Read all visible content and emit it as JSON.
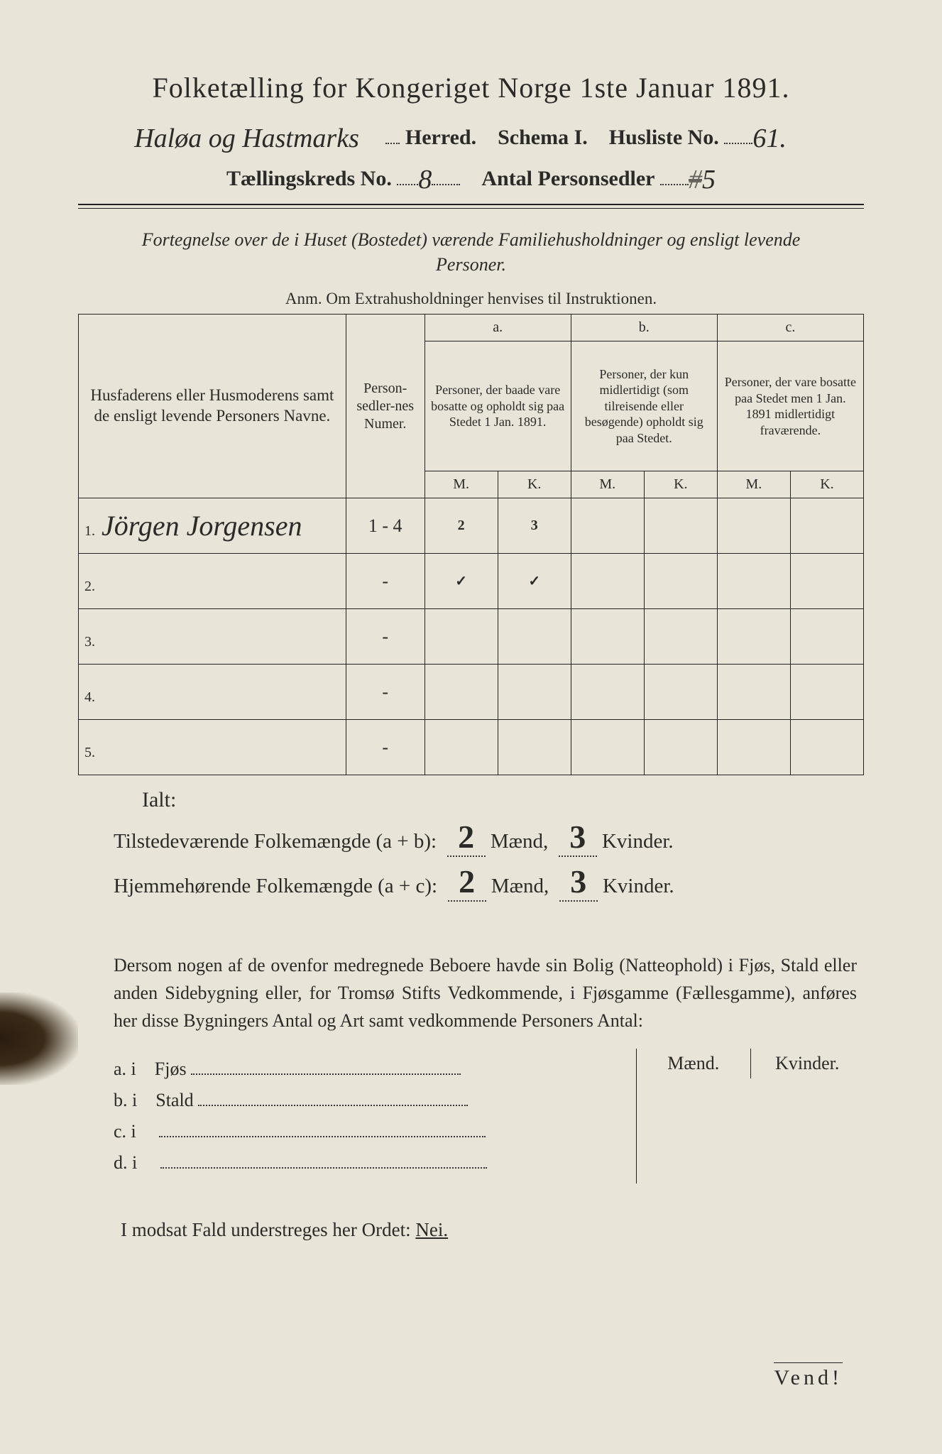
{
  "title": "Folketælling for Kongeriget Norge 1ste Januar 1891.",
  "header": {
    "herred_handwritten": "Haløa og Hastmarks",
    "herred_label": "Herred.",
    "schema_label": "Schema I.",
    "husliste_label": "Husliste No.",
    "husliste_no": "61.",
    "kreds_label": "Tællingskreds No.",
    "kreds_no": "8",
    "antal_label": "Antal Personsedler",
    "antal_val": "5",
    "antal_struck": "#"
  },
  "subtitle": "Fortegnelse over de i Huset (Bostedet) værende Familiehusholdninger og ensligt levende Personer.",
  "anm": "Anm.  Om Extrahusholdninger henvises til Instruktionen.",
  "table": {
    "col_name": "Husfaderens eller Husmoderens samt de ensligt levende Personers Navne.",
    "col_num": "Person-sedler-nes Numer.",
    "group_a": "a.",
    "group_a_text": "Personer, der baade vare bosatte og opholdt sig paa Stedet 1 Jan. 1891.",
    "group_b": "b.",
    "group_b_text": "Personer, der kun midlertidigt (som tilreisende eller besøgende) opholdt sig paa Stedet.",
    "group_c": "c.",
    "group_c_text": "Personer, der vare bosatte paa Stedet men 1 Jan. 1891 midlertidigt fraværende.",
    "m": "M.",
    "k": "K.",
    "rows": [
      {
        "n": "1.",
        "name": "Jörgen Jorgensen",
        "num": "1 - 4",
        "aM": "2",
        "aK": "3",
        "bM": "",
        "bK": "",
        "cM": "",
        "cK": ""
      },
      {
        "n": "2.",
        "name": "",
        "num": "-",
        "aM": "✓",
        "aK": "✓",
        "bM": "",
        "bK": "",
        "cM": "",
        "cK": ""
      },
      {
        "n": "3.",
        "name": "",
        "num": "-",
        "aM": "",
        "aK": "",
        "bM": "",
        "bK": "",
        "cM": "",
        "cK": ""
      },
      {
        "n": "4.",
        "name": "",
        "num": "-",
        "aM": "",
        "aK": "",
        "bM": "",
        "bK": "",
        "cM": "",
        "cK": ""
      },
      {
        "n": "5.",
        "name": "",
        "num": "-",
        "aM": "",
        "aK": "",
        "bM": "",
        "bK": "",
        "cM": "",
        "cK": ""
      }
    ]
  },
  "totals": {
    "ialt": "Ialt:",
    "line1_label": "Tilstedeværende Folkemængde (a + b):",
    "line1_m": "2",
    "line1_k": "3",
    "line2_label": "Hjemmehørende Folkemængde (a + c):",
    "line2_m": "2",
    "line2_k": "3",
    "maend": "Mænd,",
    "kvinder": "Kvinder."
  },
  "para": "Dersom nogen af de ovenfor medregnede Beboere havde sin Bolig (Natteophold) i Fjøs, Stald eller anden Sidebygning eller, for Tromsø Stifts Vedkommende, i Fjøsgamme (Fællesgamme), anføres her disse Bygningers Antal og Art samt vedkommende Personers Antal:",
  "sidebygning": {
    "maend": "Mænd.",
    "kvinder": "Kvinder.",
    "rows": [
      {
        "label": "a.  i",
        "what": "Fjøs"
      },
      {
        "label": "b.  i",
        "what": "Stald"
      },
      {
        "label": "c.  i",
        "what": ""
      },
      {
        "label": "d.  i",
        "what": ""
      }
    ]
  },
  "nei": "I modsat Fald understreges her Ordet: ",
  "nei_word": "Nei.",
  "vend": "Vend!"
}
